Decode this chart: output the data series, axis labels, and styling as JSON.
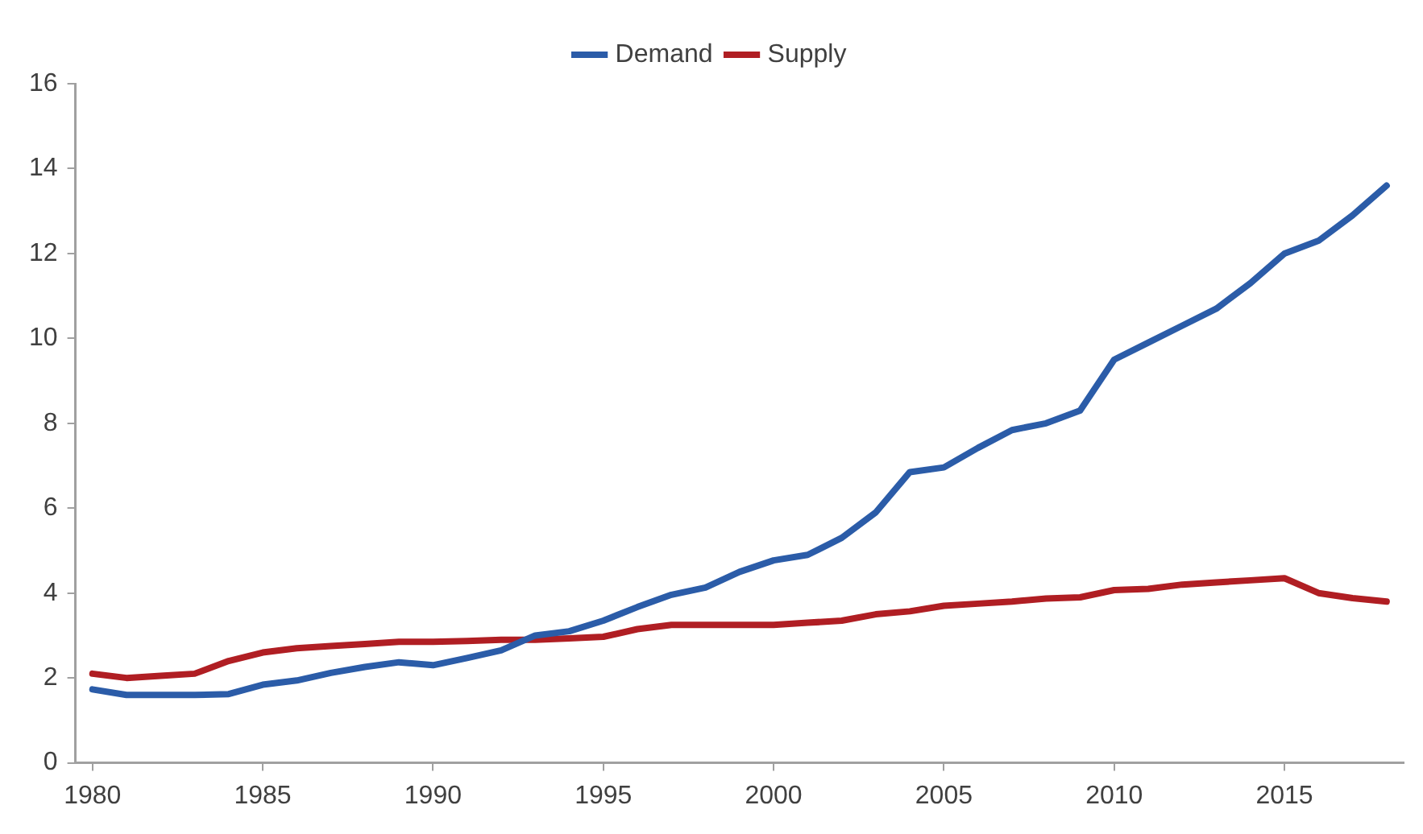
{
  "chart_data": {
    "type": "line",
    "x": [
      1980,
      1981,
      1982,
      1983,
      1984,
      1985,
      1986,
      1987,
      1988,
      1989,
      1990,
      1991,
      1992,
      1993,
      1994,
      1995,
      1996,
      1997,
      1998,
      1999,
      2000,
      2001,
      2002,
      2003,
      2004,
      2005,
      2006,
      2007,
      2008,
      2009,
      2010,
      2011,
      2012,
      2013,
      2014,
      2015,
      2016,
      2017,
      2018
    ],
    "series": [
      {
        "name": "Demand",
        "color": "#2b5ca8",
        "values": [
          1.73,
          1.6,
          1.6,
          1.6,
          1.62,
          1.84,
          1.94,
          2.12,
          2.26,
          2.37,
          2.3,
          2.47,
          2.65,
          3.0,
          3.1,
          3.35,
          3.67,
          3.96,
          4.13,
          4.5,
          4.77,
          4.9,
          5.3,
          5.9,
          6.85,
          6.96,
          7.42,
          7.84,
          8.0,
          8.3,
          9.5,
          9.9,
          10.3,
          10.7,
          11.3,
          12.0,
          12.3,
          12.9,
          13.6
        ]
      },
      {
        "name": "Supply",
        "color": "#b01e23",
        "values": [
          2.1,
          2.0,
          2.05,
          2.1,
          2.4,
          2.6,
          2.7,
          2.75,
          2.8,
          2.85,
          2.85,
          2.87,
          2.9,
          2.9,
          2.93,
          2.97,
          3.15,
          3.25,
          3.25,
          3.25,
          3.25,
          3.3,
          3.35,
          3.5,
          3.57,
          3.7,
          3.75,
          3.8,
          3.87,
          3.9,
          4.07,
          4.1,
          4.2,
          4.25,
          4.3,
          4.35,
          4.0,
          3.88,
          3.8
        ]
      }
    ],
    "xlim": [
      1979.5,
      2018.5
    ],
    "xticks": [
      1980,
      1985,
      1990,
      1995,
      2000,
      2005,
      2010,
      2015
    ],
    "ylim": [
      0,
      16
    ],
    "yticks": [
      0,
      2,
      4,
      6,
      8,
      10,
      12,
      14,
      16
    ],
    "grid": false,
    "legend": "top",
    "marker": "none",
    "line_style": "solid"
  }
}
